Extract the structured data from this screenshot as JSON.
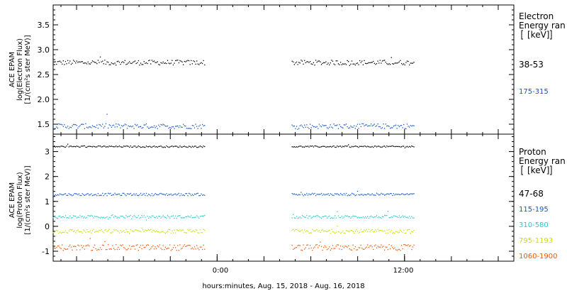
{
  "chart_data": [
    {
      "type": "scatter",
      "ylabel_lines": [
        "ACE EPAM",
        "log(Electron Flux)",
        "[1/(cm²s ster MeV)]"
      ],
      "ylim": [
        1.3,
        3.9
      ],
      "y_ticks": [
        "1.5",
        "2.0",
        "2.5",
        "3.0",
        "3.5"
      ],
      "legend_title_lines": [
        "Electron",
        "Energy ran",
        "[keV]"
      ],
      "series": [
        {
          "name": "38-53",
          "color": "#000000",
          "level": 2.74,
          "noise": 0.05
        },
        {
          "name": "175-315",
          "color": "#1155cc",
          "level": 1.46,
          "noise": 0.05
        }
      ]
    },
    {
      "type": "scatter",
      "ylabel_lines": [
        "ACE EPAM",
        "log(Proton Flux)",
        "[1/(cm²s ster MeV)]"
      ],
      "ylim": [
        -1.4,
        3.7
      ],
      "y_ticks": [
        "-1",
        "0",
        "1",
        "2",
        "3"
      ],
      "legend_title_lines": [
        "Proton",
        "Energy ran",
        "[keV]"
      ],
      "series": [
        {
          "name": "47-68",
          "color": "#000000",
          "level": 3.2,
          "noise": 0.03
        },
        {
          "name": "115-195",
          "color": "#1155cc",
          "level": 1.28,
          "noise": 0.05
        },
        {
          "name": "310-580",
          "color": "#22cccc",
          "level": 0.38,
          "noise": 0.06
        },
        {
          "name": "795-1193",
          "color": "#ccdd00",
          "level": -0.2,
          "noise": 0.08
        },
        {
          "name": "1060-1900",
          "color": "#ee5500",
          "level": -0.85,
          "noise": 0.12
        }
      ]
    }
  ],
  "x_axis": {
    "ticks": [
      "0:00",
      "12:00"
    ],
    "label": "hours:minutes, Aug. 15, 2018 - Aug. 16, 2018",
    "range_hours": [
      -10.5,
      19.0
    ],
    "data_segments_hours": [
      [
        -10.5,
        -0.8
      ],
      [
        4.8,
        12.6
      ]
    ]
  }
}
